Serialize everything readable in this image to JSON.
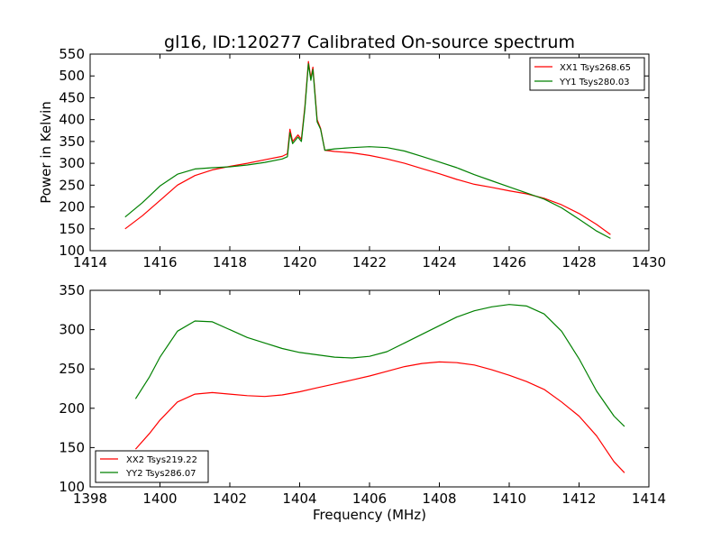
{
  "chart_data": [
    {
      "type": "line",
      "title": "gl16, ID:120277 Calibrated On-source spectrum",
      "xlabel": "",
      "ylabel": "Power in Kelvin",
      "xlim": [
        1414,
        1430
      ],
      "ylim": [
        100,
        550
      ],
      "xticks": [
        "1414",
        "1416",
        "1418",
        "1420",
        "1422",
        "1424",
        "1426",
        "1428",
        "1430"
      ],
      "yticks": [
        "100",
        "150",
        "200",
        "250",
        "300",
        "350",
        "400",
        "450",
        "500",
        "550"
      ],
      "legend_position": "top-right",
      "series": [
        {
          "name": "XX1 Tsys268.65",
          "color": "#ff0000",
          "points": [
            [
              1415.0,
              150
            ],
            [
              1415.5,
              180
            ],
            [
              1416.0,
              215
            ],
            [
              1416.5,
              250
            ],
            [
              1417.0,
              272
            ],
            [
              1417.5,
              285
            ],
            [
              1418.0,
              293
            ],
            [
              1418.5,
              300
            ],
            [
              1419.0,
              308
            ],
            [
              1419.5,
              316
            ],
            [
              1419.65,
              322
            ],
            [
              1419.72,
              378
            ],
            [
              1419.8,
              350
            ],
            [
              1419.95,
              365
            ],
            [
              1420.05,
              355
            ],
            [
              1420.15,
              430
            ],
            [
              1420.25,
              533
            ],
            [
              1420.32,
              495
            ],
            [
              1420.38,
              520
            ],
            [
              1420.5,
              400
            ],
            [
              1420.6,
              380
            ],
            [
              1420.72,
              330
            ],
            [
              1421.0,
              327
            ],
            [
              1421.5,
              324
            ],
            [
              1422.0,
              318
            ],
            [
              1422.5,
              310
            ],
            [
              1423.0,
              300
            ],
            [
              1423.5,
              288
            ],
            [
              1424.0,
              276
            ],
            [
              1424.5,
              263
            ],
            [
              1425.0,
              252
            ],
            [
              1425.5,
              245
            ],
            [
              1426.0,
              237
            ],
            [
              1426.5,
              230
            ],
            [
              1427.0,
              220
            ],
            [
              1427.5,
              205
            ],
            [
              1428.0,
              185
            ],
            [
              1428.5,
              160
            ],
            [
              1428.9,
              137
            ]
          ]
        },
        {
          "name": "YY1 Tsys280.03",
          "color": "#008000",
          "points": [
            [
              1415.0,
              177
            ],
            [
              1415.5,
              210
            ],
            [
              1416.0,
              248
            ],
            [
              1416.5,
              275
            ],
            [
              1417.0,
              287
            ],
            [
              1417.5,
              290
            ],
            [
              1418.0,
              292
            ],
            [
              1418.5,
              296
            ],
            [
              1419.0,
              302
            ],
            [
              1419.5,
              310
            ],
            [
              1419.65,
              315
            ],
            [
              1419.72,
              370
            ],
            [
              1419.8,
              345
            ],
            [
              1419.95,
              360
            ],
            [
              1420.05,
              350
            ],
            [
              1420.15,
              425
            ],
            [
              1420.25,
              528
            ],
            [
              1420.32,
              490
            ],
            [
              1420.38,
              515
            ],
            [
              1420.5,
              395
            ],
            [
              1420.6,
              378
            ],
            [
              1420.72,
              330
            ],
            [
              1421.0,
              333
            ],
            [
              1421.5,
              336
            ],
            [
              1422.0,
              338
            ],
            [
              1422.5,
              336
            ],
            [
              1423.0,
              328
            ],
            [
              1423.5,
              316
            ],
            [
              1424.0,
              303
            ],
            [
              1424.5,
              290
            ],
            [
              1425.0,
              274
            ],
            [
              1425.5,
              260
            ],
            [
              1426.0,
              246
            ],
            [
              1426.5,
              232
            ],
            [
              1427.0,
              218
            ],
            [
              1427.5,
              198
            ],
            [
              1428.0,
              172
            ],
            [
              1428.5,
              145
            ],
            [
              1428.9,
              128
            ]
          ]
        }
      ]
    },
    {
      "type": "line",
      "title": "",
      "xlabel": "Frequency (MHz)",
      "ylabel": "",
      "xlim": [
        1398,
        1414
      ],
      "ylim": [
        100,
        350
      ],
      "xticks": [
        "1398",
        "1400",
        "1402",
        "1404",
        "1406",
        "1408",
        "1410",
        "1412",
        "1414"
      ],
      "yticks": [
        "100",
        "150",
        "200",
        "250",
        "300",
        "350"
      ],
      "legend_position": "bottom-left",
      "series": [
        {
          "name": "XX2 Tsys219.22",
          "color": "#ff0000",
          "points": [
            [
              1399.3,
              148
            ],
            [
              1399.7,
              168
            ],
            [
              1400.0,
              185
            ],
            [
              1400.5,
              208
            ],
            [
              1401.0,
              218
            ],
            [
              1401.5,
              220
            ],
            [
              1402.0,
              218
            ],
            [
              1402.5,
              216
            ],
            [
              1403.0,
              215
            ],
            [
              1403.5,
              217
            ],
            [
              1404.0,
              221
            ],
            [
              1404.5,
              226
            ],
            [
              1405.0,
              231
            ],
            [
              1405.5,
              236
            ],
            [
              1406.0,
              241
            ],
            [
              1406.5,
              247
            ],
            [
              1407.0,
              253
            ],
            [
              1407.5,
              257
            ],
            [
              1408.0,
              259
            ],
            [
              1408.5,
              258
            ],
            [
              1409.0,
              255
            ],
            [
              1409.5,
              249
            ],
            [
              1410.0,
              242
            ],
            [
              1410.5,
              234
            ],
            [
              1411.0,
              224
            ],
            [
              1411.5,
              208
            ],
            [
              1412.0,
              190
            ],
            [
              1412.5,
              165
            ],
            [
              1413.0,
              132
            ],
            [
              1413.3,
              118
            ]
          ]
        },
        {
          "name": "YY2 Tsys286.07",
          "color": "#008000",
          "points": [
            [
              1399.3,
              212
            ],
            [
              1399.7,
              240
            ],
            [
              1400.0,
              265
            ],
            [
              1400.5,
              298
            ],
            [
              1401.0,
              311
            ],
            [
              1401.5,
              310
            ],
            [
              1402.0,
              300
            ],
            [
              1402.5,
              290
            ],
            [
              1403.0,
              283
            ],
            [
              1403.5,
              276
            ],
            [
              1404.0,
              271
            ],
            [
              1404.5,
              268
            ],
            [
              1405.0,
              265
            ],
            [
              1405.5,
              264
            ],
            [
              1406.0,
              266
            ],
            [
              1406.5,
              272
            ],
            [
              1407.0,
              283
            ],
            [
              1407.5,
              294
            ],
            [
              1408.0,
              305
            ],
            [
              1408.5,
              316
            ],
            [
              1409.0,
              324
            ],
            [
              1409.5,
              329
            ],
            [
              1410.0,
              332
            ],
            [
              1410.5,
              330
            ],
            [
              1411.0,
              320
            ],
            [
              1411.5,
              298
            ],
            [
              1412.0,
              263
            ],
            [
              1412.5,
              222
            ],
            [
              1413.0,
              190
            ],
            [
              1413.3,
              177
            ]
          ]
        }
      ]
    }
  ]
}
